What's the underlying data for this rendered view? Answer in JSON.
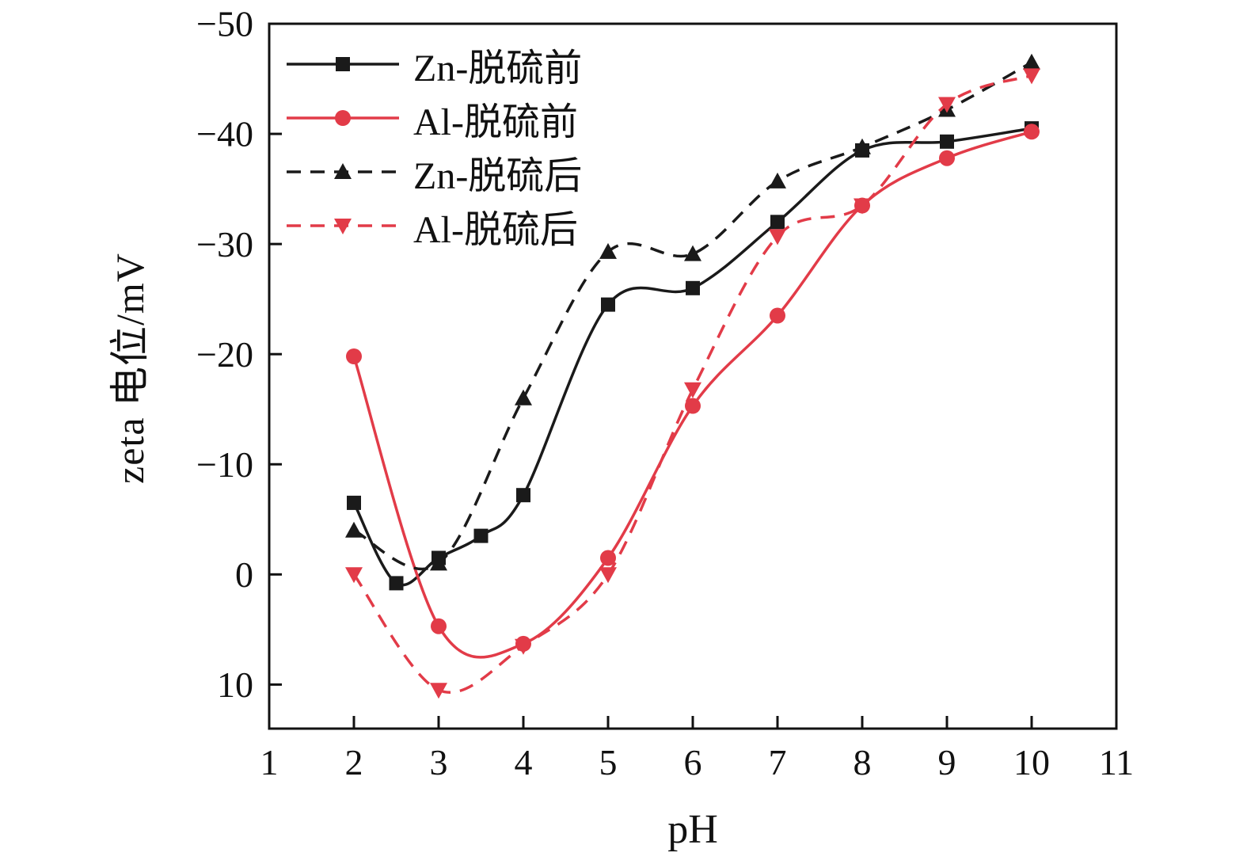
{
  "chart_data": {
    "type": "line",
    "title": "",
    "xlabel": "pH",
    "ylabel": "zeta 电位/mV",
    "xlim": [
      1,
      11
    ],
    "ylim": [
      -50,
      14
    ],
    "y_axis_inverted": true,
    "x_ticks": [
      1,
      2,
      3,
      4,
      5,
      6,
      7,
      8,
      9,
      10,
      11
    ],
    "y_ticks": [
      -50,
      -40,
      -30,
      -20,
      -10,
      0,
      10
    ],
    "grid": false,
    "legend_position": "upper-left",
    "axis_color": "#111111",
    "series": [
      {
        "name": "Zn-脱硫前",
        "color": "#1a1a1a",
        "line_style": "solid",
        "marker": "square",
        "x": [
          2,
          2.5,
          3,
          3.5,
          4,
          5,
          6,
          7,
          8,
          9,
          10
        ],
        "y": [
          -6.5,
          0.8,
          -1.5,
          -3.5,
          -7.2,
          -24.5,
          -26.0,
          -32.0,
          -38.5,
          -39.3,
          -40.5
        ]
      },
      {
        "name": "Al-脱硫前",
        "color": "#e23b48",
        "line_style": "solid",
        "marker": "circle",
        "x": [
          2,
          3,
          4,
          5,
          6,
          7,
          8,
          9,
          10
        ],
        "y": [
          -19.8,
          4.7,
          6.3,
          -1.5,
          -15.3,
          -23.5,
          -33.5,
          -37.8,
          -40.2
        ]
      },
      {
        "name": "Zn-脱硫后",
        "color": "#1a1a1a",
        "line_style": "dashed",
        "marker": "triangle-up",
        "x": [
          2,
          3,
          4,
          5,
          6,
          7,
          8,
          9,
          10
        ],
        "y": [
          -4.0,
          -1.0,
          -16.0,
          -29.3,
          -29.1,
          -35.7,
          -38.8,
          -42.2,
          -46.5
        ]
      },
      {
        "name": "Al-脱硫后",
        "color": "#e23b48",
        "line_style": "dashed",
        "marker": "triangle-down",
        "x": [
          2,
          3,
          4,
          5,
          6,
          7,
          8,
          9,
          10
        ],
        "y": [
          0.0,
          10.5,
          6.5,
          0.0,
          -16.8,
          -30.7,
          -33.5,
          -42.7,
          -45.3
        ]
      }
    ]
  }
}
